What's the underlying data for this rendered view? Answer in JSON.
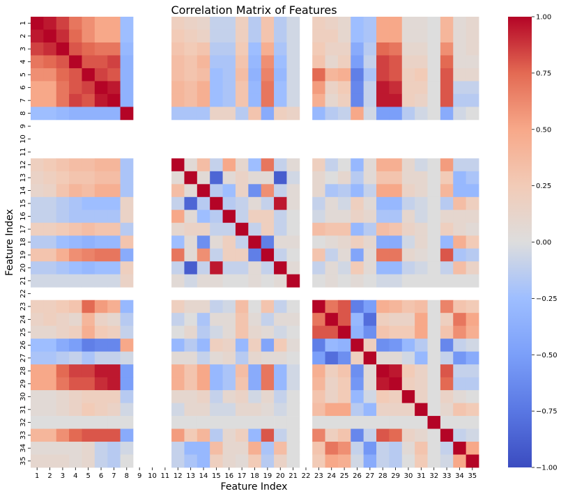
{
  "chart_data": {
    "type": "heatmap",
    "title": "Correlation Matrix of Features",
    "xlabel": "Feature Index",
    "ylabel": "Feature Index",
    "labels": [
      "1",
      "2",
      "3",
      "4",
      "5",
      "6",
      "7",
      "8",
      "9",
      "10",
      "11",
      "12",
      "13",
      "14",
      "15",
      "16",
      "17",
      "18",
      "19",
      "20",
      "21",
      "22",
      "23",
      "24",
      "25",
      "26",
      "27",
      "28",
      "29",
      "30",
      "31",
      "32",
      "33",
      "34",
      "35"
    ],
    "empty_indices": [
      9,
      10,
      11,
      22
    ],
    "vmin": -1.0,
    "vmax": 1.0,
    "colorbar_ticks": [
      -1.0,
      -0.75,
      -0.5,
      -0.25,
      0.0,
      0.25,
      0.5,
      0.75,
      1.0
    ],
    "colorbar_tick_labels": [
      "−1.00",
      "−0.75",
      "−0.50",
      "−0.25",
      "0.00",
      "0.25",
      "0.50",
      "0.75",
      "1.00"
    ],
    "colormap": "coolwarm",
    "matrix": [
      [
        1,
        0.95,
        0.85,
        0.7,
        0.6,
        0.5,
        0.5,
        -0.25,
        null,
        null,
        null,
        0.2,
        0.15,
        0.12,
        -0.1,
        -0.1,
        0.2,
        -0.15,
        0.3,
        -0.15,
        -0.05,
        null,
        0.2,
        0.15,
        0.1,
        -0.25,
        -0.2,
        0.5,
        0.5,
        0.05,
        0.05,
        0,
        0.4,
        0.05,
        0.1
      ],
      [
        0.95,
        1,
        0.9,
        0.75,
        0.6,
        0.5,
        0.5,
        -0.25,
        null,
        null,
        null,
        0.25,
        0.2,
        0.15,
        -0.1,
        -0.1,
        0.2,
        -0.15,
        0.3,
        -0.15,
        -0.05,
        null,
        0.2,
        0.2,
        0.1,
        -0.25,
        -0.2,
        0.5,
        0.5,
        0.05,
        0.05,
        0,
        0.4,
        0.05,
        0.1
      ],
      [
        0.85,
        0.9,
        1,
        0.8,
        0.75,
        0.7,
        0.7,
        -0.3,
        null,
        null,
        null,
        0.3,
        0.25,
        0.3,
        -0.15,
        -0.15,
        0.25,
        -0.25,
        0.45,
        -0.2,
        -0.05,
        null,
        0.25,
        0.15,
        0.15,
        -0.4,
        -0.15,
        0.75,
        0.7,
        0.1,
        0.1,
        0,
        0.6,
        0.05,
        0.1
      ],
      [
        0.7,
        0.75,
        0.8,
        1,
        0.8,
        0.8,
        0.85,
        -0.35,
        null,
        null,
        null,
        0.35,
        0.3,
        0.4,
        -0.2,
        -0.2,
        0.3,
        -0.3,
        0.6,
        -0.25,
        -0.05,
        null,
        0.3,
        0.1,
        0.2,
        -0.5,
        -0.1,
        0.85,
        0.8,
        0.15,
        0.15,
        0,
        0.75,
        0.05,
        0.05
      ],
      [
        0.6,
        0.6,
        0.75,
        0.8,
        1,
        0.85,
        0.8,
        -0.35,
        null,
        null,
        null,
        0.35,
        0.3,
        0.35,
        -0.25,
        -0.2,
        0.35,
        -0.35,
        0.65,
        -0.3,
        -0.05,
        null,
        0.75,
        0.4,
        0.45,
        -0.7,
        -0.2,
        0.85,
        0.8,
        0.2,
        0.25,
        0,
        0.8,
        0.1,
        0.1
      ],
      [
        0.5,
        0.5,
        0.7,
        0.8,
        0.85,
        1,
        0.95,
        -0.35,
        null,
        null,
        null,
        0.4,
        0.35,
        0.45,
        -0.25,
        -0.2,
        0.3,
        -0.3,
        0.7,
        -0.25,
        -0.05,
        null,
        0.55,
        0.15,
        0.25,
        -0.65,
        -0.1,
        0.95,
        0.9,
        0.2,
        0.2,
        0,
        0.8,
        -0.1,
        -0.1
      ],
      [
        0.5,
        0.5,
        0.7,
        0.85,
        0.8,
        0.95,
        1,
        -0.35,
        null,
        null,
        null,
        0.4,
        0.35,
        0.45,
        -0.25,
        -0.2,
        0.3,
        -0.3,
        0.7,
        -0.25,
        -0.05,
        null,
        0.45,
        0.1,
        0.2,
        -0.65,
        -0.1,
        0.95,
        0.95,
        0.2,
        0.15,
        0,
        0.8,
        -0.15,
        -0.15
      ],
      [
        -0.25,
        -0.25,
        -0.3,
        -0.35,
        -0.35,
        -0.35,
        -0.35,
        1,
        null,
        null,
        null,
        -0.2,
        -0.2,
        -0.2,
        0.15,
        0.15,
        -0.15,
        0.3,
        -0.4,
        0.2,
        0.15,
        null,
        -0.3,
        -0.15,
        -0.1,
        0.5,
        -0.05,
        -0.5,
        -0.5,
        -0.15,
        -0.05,
        0,
        -0.4,
        -0.05,
        0
      ],
      [
        null,
        null,
        null,
        null,
        null,
        null,
        null,
        null,
        null,
        null,
        null,
        null,
        null,
        null,
        null,
        null,
        null,
        null,
        null,
        null,
        null,
        null,
        null,
        null,
        null,
        null,
        null,
        null,
        null,
        null,
        null,
        null,
        null,
        null,
        null
      ],
      [
        null,
        null,
        null,
        null,
        null,
        null,
        null,
        null,
        null,
        null,
        null,
        null,
        null,
        null,
        null,
        null,
        null,
        null,
        null,
        null,
        null,
        null,
        null,
        null,
        null,
        null,
        null,
        null,
        null,
        null,
        null,
        null,
        null,
        null,
        null
      ],
      [
        null,
        null,
        null,
        null,
        null,
        null,
        null,
        null,
        null,
        null,
        null,
        null,
        null,
        null,
        null,
        null,
        null,
        null,
        null,
        null,
        null,
        null,
        null,
        null,
        null,
        null,
        null,
        null,
        null,
        null,
        null,
        null,
        null,
        null,
        null
      ],
      [
        0.2,
        0.25,
        0.3,
        0.35,
        0.35,
        0.4,
        0.4,
        -0.2,
        null,
        null,
        null,
        1,
        0.05,
        0.35,
        -0.1,
        0.5,
        0.1,
        -0.25,
        0.7,
        -0.1,
        0.05,
        null,
        0.2,
        -0.1,
        0,
        -0.3,
        0.05,
        0.45,
        0.45,
        0.1,
        -0.05,
        0,
        0.55,
        -0.1,
        -0.1
      ],
      [
        0.15,
        0.2,
        0.25,
        0.3,
        0.3,
        0.35,
        0.35,
        -0.2,
        null,
        null,
        null,
        0.05,
        1,
        0.05,
        -0.85,
        0.05,
        0.15,
        0.05,
        0.05,
        -0.9,
        -0.05,
        null,
        0.1,
        0,
        0.1,
        -0.15,
        0.05,
        0.3,
        0.3,
        0.1,
        0.1,
        0,
        0.25,
        -0.3,
        -0.2
      ],
      [
        0.12,
        0.15,
        0.3,
        0.4,
        0.35,
        0.45,
        0.45,
        -0.2,
        null,
        null,
        null,
        0.35,
        0.05,
        1,
        -0.15,
        -0.25,
        0.15,
        -0.6,
        0.6,
        -0.1,
        0.05,
        null,
        0.1,
        -0.2,
        -0.15,
        -0.3,
        -0.1,
        0.5,
        0.5,
        0.15,
        0.1,
        0,
        0.4,
        -0.3,
        -0.3
      ],
      [
        -0.1,
        -0.1,
        -0.15,
        -0.2,
        -0.25,
        -0.25,
        -0.25,
        0.15,
        null,
        null,
        null,
        -0.1,
        -0.85,
        -0.15,
        1,
        -0.15,
        -0.1,
        0.05,
        -0.1,
        0.95,
        0.05,
        null,
        -0.1,
        0.05,
        -0.05,
        0.2,
        0.05,
        -0.3,
        -0.3,
        -0.1,
        -0.05,
        0,
        -0.15,
        0.35,
        0.2
      ],
      [
        -0.1,
        -0.1,
        -0.15,
        -0.2,
        -0.2,
        -0.2,
        -0.2,
        0.15,
        null,
        null,
        null,
        0.5,
        0.05,
        -0.25,
        -0.15,
        1,
        -0.1,
        0.2,
        0.2,
        -0.1,
        0,
        null,
        -0.05,
        0.05,
        0.05,
        0.15,
        0.1,
        -0.2,
        -0.2,
        0.1,
        -0.05,
        0,
        0.1,
        0.1,
        0.1
      ],
      [
        0.2,
        0.2,
        0.25,
        0.3,
        0.35,
        0.3,
        0.3,
        -0.15,
        null,
        null,
        null,
        0.1,
        0.15,
        0.15,
        -0.1,
        -0.1,
        1,
        -0.1,
        0.2,
        -0.1,
        0,
        null,
        0.35,
        0.3,
        0.3,
        -0.3,
        -0.15,
        0.35,
        0.3,
        0.15,
        0.1,
        0,
        0.2,
        0.1,
        0.05
      ],
      [
        -0.15,
        -0.15,
        -0.25,
        -0.3,
        -0.35,
        -0.3,
        -0.3,
        0.3,
        null,
        null,
        null,
        -0.25,
        0.05,
        -0.6,
        0.05,
        0.2,
        -0.1,
        1,
        -0.7,
        0.05,
        0.05,
        null,
        0,
        0.05,
        0.1,
        0.2,
        0.1,
        -0.4,
        -0.4,
        -0.05,
        0.1,
        0,
        -0.3,
        0.45,
        0.25
      ],
      [
        0.3,
        0.3,
        0.45,
        0.6,
        0.65,
        0.7,
        0.7,
        -0.4,
        null,
        null,
        null,
        0.7,
        0.05,
        0.6,
        -0.1,
        0.2,
        0.2,
        -0.7,
        1,
        -0.1,
        0,
        null,
        0.3,
        -0.1,
        0.05,
        -0.45,
        0.05,
        0.7,
        0.7,
        0.1,
        0.05,
        0,
        0.8,
        -0.2,
        -0.15
      ],
      [
        -0.15,
        -0.15,
        -0.2,
        -0.25,
        -0.3,
        -0.25,
        -0.25,
        0.2,
        null,
        null,
        null,
        -0.1,
        -0.9,
        -0.1,
        0.95,
        -0.1,
        -0.1,
        0.05,
        -0.1,
        1,
        0.05,
        null,
        -0.1,
        0.05,
        -0.05,
        0.25,
        0.05,
        -0.3,
        -0.3,
        -0.1,
        -0.05,
        0,
        -0.1,
        0.35,
        0.15
      ],
      [
        -0.05,
        -0.05,
        -0.05,
        -0.05,
        -0.05,
        -0.05,
        -0.05,
        0.15,
        null,
        null,
        null,
        0.05,
        -0.05,
        0.05,
        0.05,
        0,
        0,
        0.05,
        0,
        0.05,
        1,
        null,
        0,
        0.05,
        0,
        0.05,
        0,
        -0.05,
        -0.05,
        0,
        0,
        0,
        0,
        0,
        0
      ],
      [
        null,
        null,
        null,
        null,
        null,
        null,
        null,
        null,
        null,
        null,
        null,
        null,
        null,
        null,
        null,
        null,
        null,
        null,
        null,
        null,
        null,
        null,
        null,
        null,
        null,
        null,
        null,
        null,
        null,
        null,
        null,
        null,
        null,
        null,
        null
      ],
      [
        0.2,
        0.2,
        0.25,
        0.3,
        0.75,
        0.55,
        0.45,
        -0.3,
        null,
        null,
        null,
        0.2,
        0.1,
        0.1,
        -0.1,
        -0.05,
        0.35,
        0,
        0.3,
        -0.1,
        0,
        null,
        1,
        0.7,
        0.8,
        -0.7,
        -0.5,
        0.45,
        0.4,
        0.3,
        0.35,
        0,
        0.65,
        0.3,
        0.25
      ],
      [
        0.15,
        0.2,
        0.15,
        0.1,
        0.4,
        0.15,
        0.1,
        -0.15,
        null,
        null,
        null,
        -0.1,
        0,
        -0.2,
        0.05,
        0.05,
        0.3,
        0.05,
        -0.1,
        0.05,
        0.05,
        null,
        0.7,
        1,
        0.8,
        -0.3,
        -0.8,
        0.2,
        0.15,
        0.15,
        0.5,
        0,
        0.2,
        0.7,
        0.5
      ],
      [
        0.1,
        0.1,
        0.15,
        0.2,
        0.45,
        0.25,
        0.2,
        -0.1,
        null,
        null,
        null,
        0,
        0.1,
        -0.15,
        -0.05,
        0.05,
        0.3,
        0.1,
        0.05,
        -0.05,
        0,
        null,
        0.8,
        0.8,
        1,
        -0.35,
        -0.6,
        0.3,
        0.25,
        0.25,
        0.5,
        0,
        0.3,
        0.6,
        0.45
      ],
      [
        -0.25,
        -0.25,
        -0.4,
        -0.5,
        -0.7,
        -0.65,
        -0.65,
        0.5,
        null,
        null,
        null,
        -0.3,
        -0.15,
        -0.3,
        0.2,
        0.15,
        -0.3,
        0.2,
        -0.45,
        0.25,
        0.05,
        null,
        -0.7,
        -0.3,
        -0.35,
        1,
        0.2,
        -0.6,
        -0.55,
        -0.3,
        -0.15,
        0,
        -0.65,
        -0.1,
        -0.05
      ],
      [
        -0.2,
        -0.2,
        -0.15,
        -0.1,
        -0.2,
        -0.1,
        -0.1,
        -0.05,
        null,
        null,
        null,
        0.05,
        0.05,
        -0.1,
        0.05,
        0.1,
        -0.15,
        0.1,
        0.05,
        0.05,
        0,
        null,
        -0.5,
        -0.8,
        -0.6,
        0.2,
        1,
        0.05,
        0.05,
        -0.05,
        -0.3,
        0,
        -0.1,
        -0.55,
        -0.4
      ],
      [
        0.5,
        0.5,
        0.75,
        0.85,
        0.85,
        0.95,
        0.95,
        -0.5,
        null,
        null,
        null,
        0.45,
        0.3,
        0.5,
        -0.3,
        -0.2,
        0.35,
        -0.4,
        0.7,
        -0.3,
        -0.05,
        null,
        0.45,
        0.2,
        0.3,
        -0.6,
        0.05,
        1,
        0.95,
        0.25,
        0.15,
        0,
        0.8,
        -0.1,
        -0.1
      ],
      [
        0.5,
        0.5,
        0.7,
        0.8,
        0.8,
        0.9,
        0.95,
        -0.5,
        null,
        null,
        null,
        0.45,
        0.3,
        0.5,
        -0.3,
        -0.2,
        0.3,
        -0.4,
        0.7,
        -0.3,
        -0.05,
        null,
        0.4,
        0.15,
        0.25,
        -0.55,
        0.05,
        0.95,
        1,
        0.2,
        0.15,
        0,
        0.75,
        -0.15,
        -0.15
      ],
      [
        0.05,
        0.05,
        0.1,
        0.15,
        0.2,
        0.2,
        0.2,
        -0.15,
        null,
        null,
        null,
        0.1,
        0.1,
        0.15,
        -0.1,
        0.1,
        0.15,
        -0.05,
        0.1,
        -0.1,
        0,
        null,
        0.3,
        0.15,
        0.25,
        -0.3,
        -0.05,
        0.25,
        0.2,
        1,
        0.15,
        0,
        0.15,
        0.05,
        0
      ],
      [
        0.05,
        0.05,
        0.1,
        0.15,
        0.25,
        0.2,
        0.15,
        -0.05,
        null,
        null,
        null,
        -0.05,
        0.1,
        0.1,
        -0.05,
        -0.05,
        0.1,
        0.1,
        0.05,
        -0.05,
        0,
        null,
        0.35,
        0.5,
        0.5,
        -0.15,
        -0.3,
        0.15,
        0.15,
        0.15,
        1,
        0,
        0.1,
        0.3,
        0.25
      ],
      [
        0,
        0,
        0,
        0,
        0,
        0,
        0,
        0,
        null,
        null,
        null,
        0,
        0,
        0,
        0,
        0,
        0,
        0,
        0,
        0,
        0,
        null,
        0,
        0,
        0,
        0,
        0,
        0,
        0,
        0,
        0,
        1,
        0,
        0,
        0
      ],
      [
        0.4,
        0.4,
        0.6,
        0.75,
        0.8,
        0.8,
        0.8,
        -0.4,
        null,
        null,
        null,
        0.55,
        0.25,
        0.4,
        -0.15,
        0.1,
        0.2,
        -0.3,
        0.8,
        -0.1,
        0,
        null,
        0.65,
        0.2,
        0.3,
        -0.65,
        -0.1,
        0.8,
        0.75,
        0.15,
        0.1,
        0,
        1,
        -0.1,
        -0.05
      ],
      [
        0.05,
        0.05,
        0.05,
        0.05,
        0.1,
        -0.1,
        -0.15,
        -0.05,
        null,
        null,
        null,
        -0.1,
        -0.3,
        -0.3,
        0.35,
        0.1,
        0.1,
        0.45,
        -0.2,
        0.35,
        0,
        null,
        0.3,
        0.7,
        0.6,
        -0.1,
        -0.55,
        -0.1,
        -0.15,
        0.05,
        0.3,
        0,
        -0.1,
        1,
        0.5
      ],
      [
        0.1,
        0.1,
        0.1,
        0.05,
        0.1,
        -0.1,
        -0.15,
        0,
        null,
        null,
        null,
        -0.1,
        -0.2,
        -0.3,
        0.2,
        0.1,
        0.05,
        0.25,
        -0.15,
        0.15,
        0,
        null,
        0.25,
        0.5,
        0.45,
        -0.05,
        -0.4,
        -0.1,
        -0.15,
        0,
        0.25,
        0,
        -0.05,
        0.5,
        1
      ]
    ]
  }
}
